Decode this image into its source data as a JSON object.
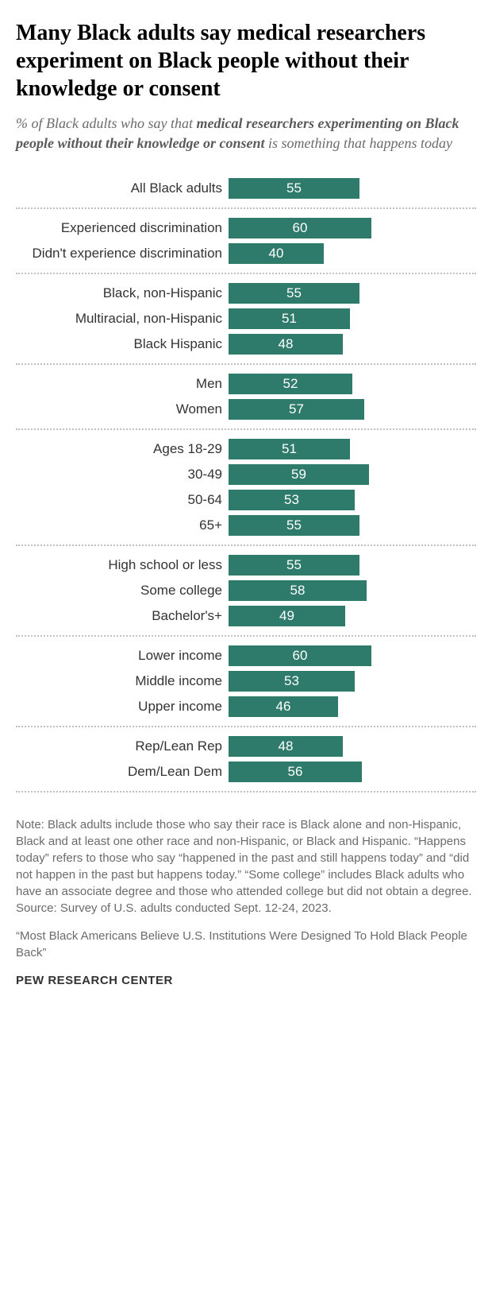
{
  "title": "Many Black adults say medical researchers experiment on Black people without their knowledge or consent",
  "subtitle_prefix": "% of Black adults who say that ",
  "subtitle_bold": "medical researchers experimenting on Black people without their knowledge or consent",
  "subtitle_suffix": " is something that happens today",
  "bar_color": "#2e7b6b",
  "max_value": 100,
  "bar_scale": 3.0,
  "groups": [
    {
      "rows": [
        {
          "label": "All Black adults",
          "value": 55
        }
      ]
    },
    {
      "rows": [
        {
          "label": "Experienced discrimination",
          "value": 60
        },
        {
          "label": "Didn't experience discrimination",
          "value": 40
        }
      ]
    },
    {
      "rows": [
        {
          "label": "Black, non-Hispanic",
          "value": 55
        },
        {
          "label": "Multiracial, non-Hispanic",
          "value": 51
        },
        {
          "label": "Black Hispanic",
          "value": 48
        }
      ]
    },
    {
      "rows": [
        {
          "label": "Men",
          "value": 52
        },
        {
          "label": "Women",
          "value": 57
        }
      ]
    },
    {
      "rows": [
        {
          "label": "Ages 18-29",
          "value": 51
        },
        {
          "label": "30-49",
          "value": 59
        },
        {
          "label": "50-64",
          "value": 53
        },
        {
          "label": "65+",
          "value": 55
        }
      ]
    },
    {
      "rows": [
        {
          "label": "High school or less",
          "value": 55
        },
        {
          "label": "Some college",
          "value": 58
        },
        {
          "label": "Bachelor's+",
          "value": 49
        }
      ]
    },
    {
      "rows": [
        {
          "label": "Lower income",
          "value": 60
        },
        {
          "label": "Middle income",
          "value": 53
        },
        {
          "label": "Upper income",
          "value": 46
        }
      ]
    },
    {
      "rows": [
        {
          "label": "Rep/Lean Rep",
          "value": 48
        },
        {
          "label": "Dem/Lean Dem",
          "value": 56
        }
      ]
    }
  ],
  "note": "Note: Black adults include those who say their race is Black alone and non-Hispanic, Black and at least one other race and non-Hispanic, or Black and Hispanic. “Happens today” refers to those who say “happened in the past and still happens today” and “did not happen in the past but happens today.” “Some college” includes Black adults who have an associate degree and those who attended college but did not obtain a degree. Source: Survey of U.S. adults conducted Sept. 12-24, 2023.",
  "report_title": "“Most Black Americans Believe U.S. Institutions Were Designed To Hold Black People Back”",
  "source": "PEW RESEARCH CENTER"
}
